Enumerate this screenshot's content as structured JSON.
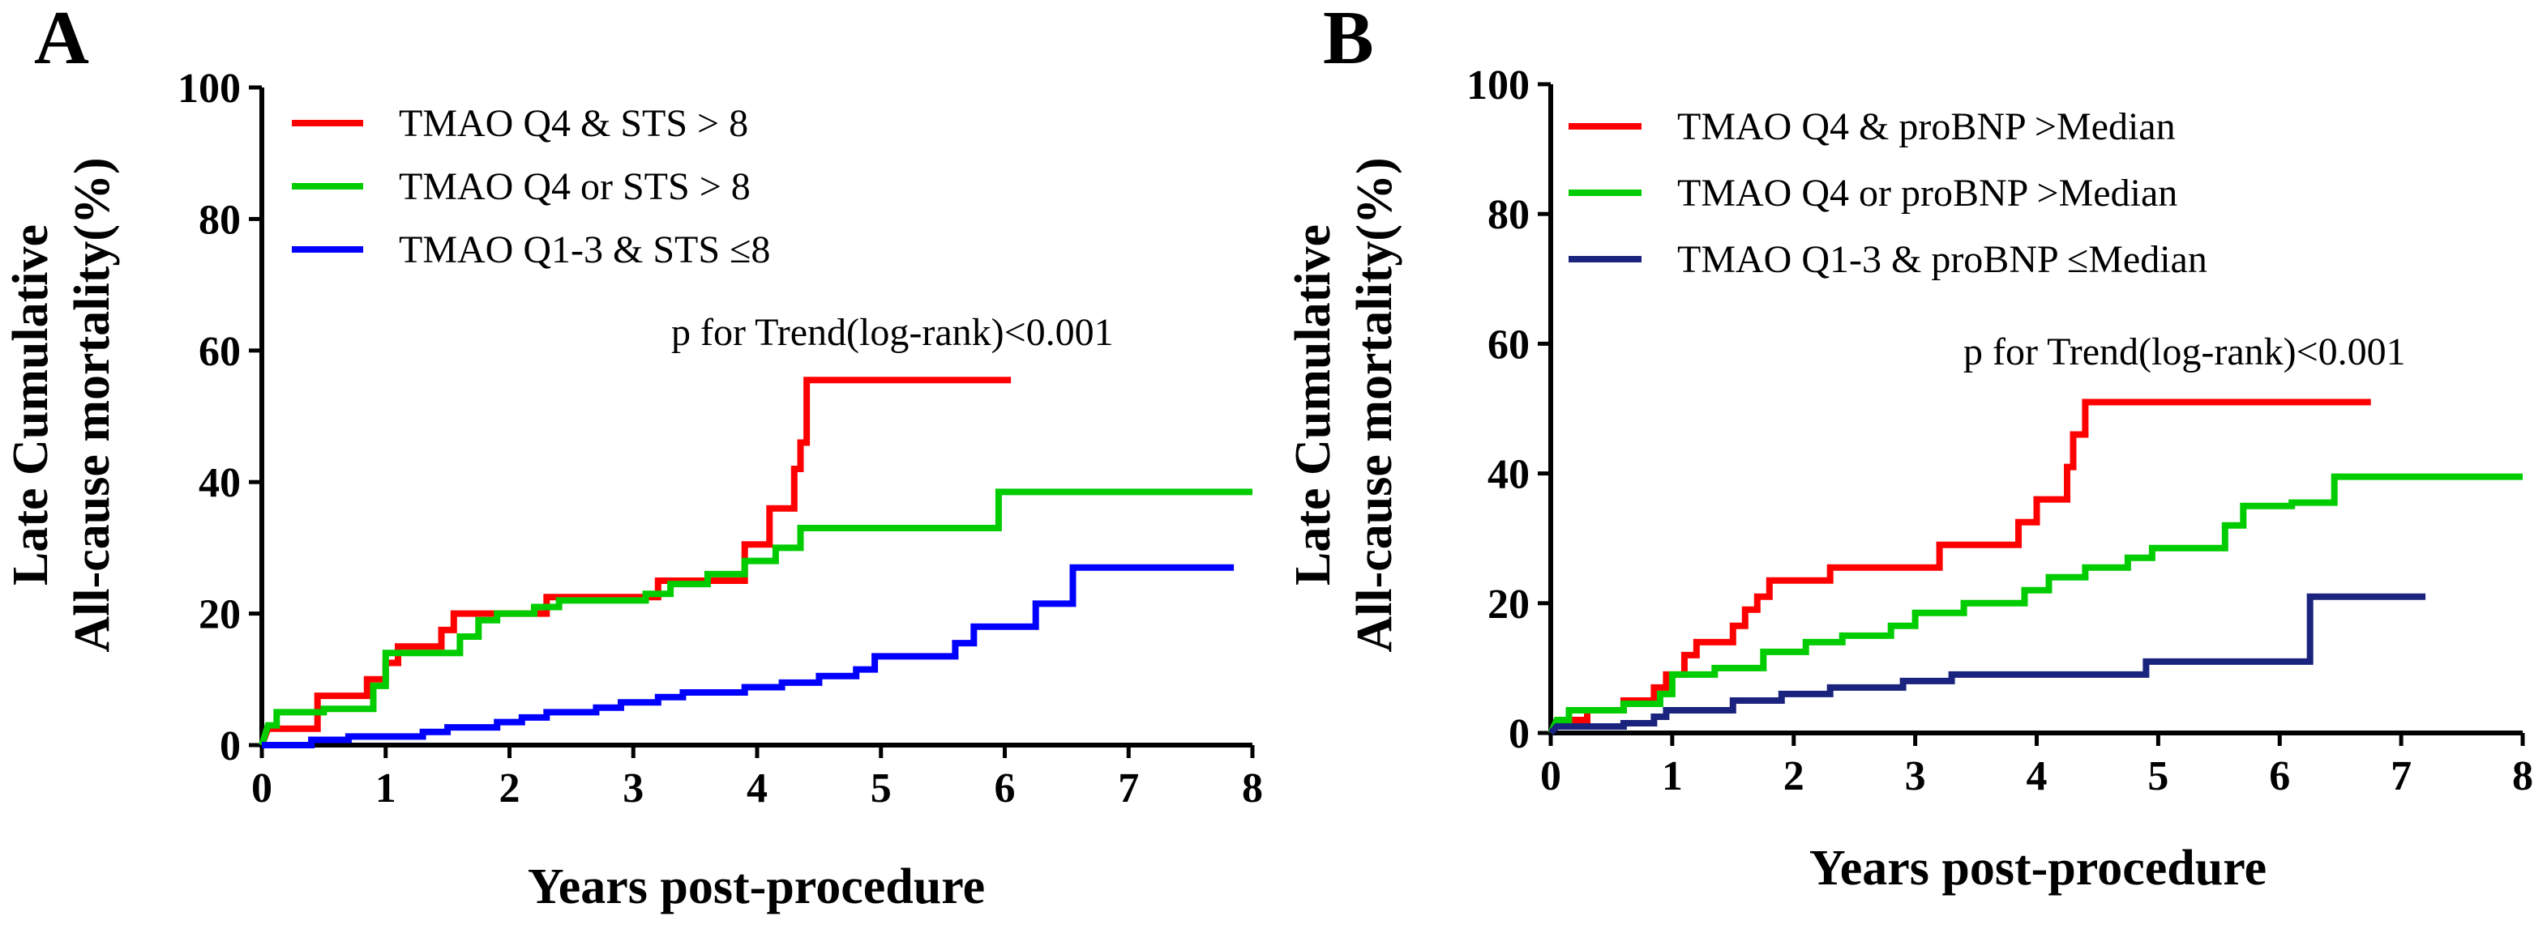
{
  "chart_data": [
    {
      "panel": "A",
      "type": "line",
      "xlabel": "Years post-procedure",
      "ylabel": [
        "Late Cumulative",
        "All-cause mortality(%)"
      ],
      "xlim": [
        0,
        8
      ],
      "ylim": [
        0,
        100
      ],
      "xticks": [
        "0",
        "1",
        "2",
        "3",
        "4",
        "5",
        "6",
        "7",
        "8"
      ],
      "yticks": [
        "0",
        "20",
        "40",
        "60",
        "80",
        "100"
      ],
      "legend_position": "top-left",
      "annotation": "p for Trend(log-rank)<0.001",
      "series": [
        {
          "name": "TMAO Q4 & STS > 8",
          "color": "#ff0000",
          "points": [
            [
              0,
              0
            ],
            [
              0.05,
              2.5
            ],
            [
              0.45,
              2.5
            ],
            [
              0.45,
              7.5
            ],
            [
              0.85,
              7.5
            ],
            [
              0.85,
              10
            ],
            [
              1.0,
              10
            ],
            [
              1.0,
              12.5
            ],
            [
              1.1,
              12.5
            ],
            [
              1.1,
              15
            ],
            [
              1.45,
              15
            ],
            [
              1.45,
              17.5
            ],
            [
              1.55,
              17.5
            ],
            [
              1.55,
              20
            ],
            [
              2.3,
              20
            ],
            [
              2.3,
              22.5
            ],
            [
              3.2,
              22.5
            ],
            [
              3.2,
              25
            ],
            [
              3.9,
              25
            ],
            [
              3.9,
              30.5
            ],
            [
              4.1,
              30.5
            ],
            [
              4.1,
              36
            ],
            [
              4.3,
              36
            ],
            [
              4.3,
              42
            ],
            [
              4.35,
              42
            ],
            [
              4.35,
              46
            ],
            [
              4.4,
              46
            ],
            [
              4.4,
              55.5
            ],
            [
              6.05,
              55.5
            ]
          ]
        },
        {
          "name": "TMAO Q4 or STS > 8",
          "color": "#00cc00",
          "points": [
            [
              0,
              0
            ],
            [
              0.05,
              3
            ],
            [
              0.12,
              3
            ],
            [
              0.12,
              5
            ],
            [
              0.5,
              5
            ],
            [
              0.5,
              5.5
            ],
            [
              0.9,
              5.5
            ],
            [
              0.9,
              9
            ],
            [
              1.0,
              9
            ],
            [
              1.0,
              14
            ],
            [
              1.6,
              14
            ],
            [
              1.6,
              16.5
            ],
            [
              1.75,
              16.5
            ],
            [
              1.75,
              19
            ],
            [
              1.9,
              19
            ],
            [
              1.9,
              20
            ],
            [
              2.2,
              20
            ],
            [
              2.2,
              21
            ],
            [
              2.4,
              21
            ],
            [
              2.4,
              22
            ],
            [
              3.1,
              22
            ],
            [
              3.1,
              23
            ],
            [
              3.3,
              23
            ],
            [
              3.3,
              24.5
            ],
            [
              3.6,
              24.5
            ],
            [
              3.6,
              26
            ],
            [
              3.9,
              26
            ],
            [
              3.9,
              28
            ],
            [
              4.15,
              28
            ],
            [
              4.15,
              30
            ],
            [
              4.35,
              30
            ],
            [
              4.35,
              33
            ],
            [
              5.95,
              33
            ],
            [
              5.95,
              38.5
            ],
            [
              8,
              38.5
            ]
          ]
        },
        {
          "name": "TMAO Q1-3 & STS ≤8",
          "color": "#0000ff",
          "points": [
            [
              0,
              0
            ],
            [
              0.4,
              0
            ],
            [
              0.4,
              0.8
            ],
            [
              0.7,
              0.8
            ],
            [
              0.7,
              1.3
            ],
            [
              1.3,
              1.3
            ],
            [
              1.3,
              2
            ],
            [
              1.5,
              2
            ],
            [
              1.5,
              2.7
            ],
            [
              1.9,
              2.7
            ],
            [
              1.9,
              3.5
            ],
            [
              2.1,
              3.5
            ],
            [
              2.1,
              4.2
            ],
            [
              2.3,
              4.2
            ],
            [
              2.3,
              5
            ],
            [
              2.7,
              5
            ],
            [
              2.7,
              5.7
            ],
            [
              2.9,
              5.7
            ],
            [
              2.9,
              6.5
            ],
            [
              3.2,
              6.5
            ],
            [
              3.2,
              7.3
            ],
            [
              3.4,
              7.3
            ],
            [
              3.4,
              8
            ],
            [
              3.9,
              8
            ],
            [
              3.9,
              8.8
            ],
            [
              4.2,
              8.8
            ],
            [
              4.2,
              9.5
            ],
            [
              4.5,
              9.5
            ],
            [
              4.5,
              10.5
            ],
            [
              4.8,
              10.5
            ],
            [
              4.8,
              11.5
            ],
            [
              4.95,
              11.5
            ],
            [
              4.95,
              13.5
            ],
            [
              5.6,
              13.5
            ],
            [
              5.6,
              15.5
            ],
            [
              5.75,
              15.5
            ],
            [
              5.75,
              18
            ],
            [
              6.25,
              18
            ],
            [
              6.25,
              21.5
            ],
            [
              6.55,
              21.5
            ],
            [
              6.55,
              27
            ],
            [
              7.85,
              27
            ]
          ]
        }
      ]
    },
    {
      "panel": "B",
      "type": "line",
      "xlabel": "Years post-procedure",
      "ylabel": [
        "Late Cumulative",
        "All-cause mortality(%)"
      ],
      "xlim": [
        0,
        8
      ],
      "ylim": [
        0,
        100
      ],
      "xticks": [
        "0",
        "1",
        "2",
        "3",
        "4",
        "5",
        "6",
        "7",
        "8"
      ],
      "yticks": [
        "0",
        "20",
        "40",
        "60",
        "80",
        "100"
      ],
      "legend_position": "top-left",
      "annotation": "p for Trend(log-rank)<0.001",
      "series": [
        {
          "name": "TMAO Q4 & proBNP >Median",
          "color": "#ff0000",
          "points": [
            [
              0,
              0
            ],
            [
              0.05,
              2
            ],
            [
              0.3,
              2
            ],
            [
              0.3,
              3.5
            ],
            [
              0.6,
              3.5
            ],
            [
              0.6,
              5
            ],
            [
              0.85,
              5
            ],
            [
              0.85,
              7
            ],
            [
              0.95,
              7
            ],
            [
              0.95,
              9
            ],
            [
              1.1,
              9
            ],
            [
              1.1,
              12
            ],
            [
              1.2,
              12
            ],
            [
              1.2,
              14
            ],
            [
              1.5,
              14
            ],
            [
              1.5,
              16.5
            ],
            [
              1.6,
              16.5
            ],
            [
              1.6,
              19
            ],
            [
              1.7,
              19
            ],
            [
              1.7,
              21
            ],
            [
              1.8,
              21
            ],
            [
              1.8,
              23.5
            ],
            [
              2.3,
              23.5
            ],
            [
              2.3,
              25.5
            ],
            [
              3.2,
              25.5
            ],
            [
              3.2,
              29
            ],
            [
              3.85,
              29
            ],
            [
              3.85,
              32.5
            ],
            [
              4.0,
              32.5
            ],
            [
              4.0,
              36
            ],
            [
              4.25,
              36
            ],
            [
              4.25,
              41
            ],
            [
              4.3,
              41
            ],
            [
              4.3,
              46
            ],
            [
              4.4,
              46
            ],
            [
              4.4,
              51
            ],
            [
              6.75,
              51
            ]
          ]
        },
        {
          "name": "TMAO Q4 or proBNP >Median",
          "color": "#00cc00",
          "points": [
            [
              0,
              0
            ],
            [
              0.05,
              2
            ],
            [
              0.15,
              2
            ],
            [
              0.15,
              3.5
            ],
            [
              0.6,
              3.5
            ],
            [
              0.6,
              4.5
            ],
            [
              0.9,
              4.5
            ],
            [
              0.9,
              6
            ],
            [
              1.0,
              6
            ],
            [
              1.0,
              9
            ],
            [
              1.35,
              9
            ],
            [
              1.35,
              10
            ],
            [
              1.75,
              10
            ],
            [
              1.75,
              12.5
            ],
            [
              2.1,
              12.5
            ],
            [
              2.1,
              14
            ],
            [
              2.4,
              14
            ],
            [
              2.4,
              15
            ],
            [
              2.8,
              15
            ],
            [
              2.8,
              16.5
            ],
            [
              3.0,
              16.5
            ],
            [
              3.0,
              18.5
            ],
            [
              3.4,
              18.5
            ],
            [
              3.4,
              20
            ],
            [
              3.9,
              20
            ],
            [
              3.9,
              22
            ],
            [
              4.1,
              22
            ],
            [
              4.1,
              24
            ],
            [
              4.4,
              24
            ],
            [
              4.4,
              25.5
            ],
            [
              4.75,
              25.5
            ],
            [
              4.75,
              27
            ],
            [
              4.95,
              27
            ],
            [
              4.95,
              28.5
            ],
            [
              5.55,
              28.5
            ],
            [
              5.55,
              32
            ],
            [
              5.7,
              32
            ],
            [
              5.7,
              35
            ],
            [
              6.1,
              35
            ],
            [
              6.1,
              35.5
            ],
            [
              6.45,
              35.5
            ],
            [
              6.45,
              39.5
            ],
            [
              8,
              39.5
            ]
          ]
        },
        {
          "name": "TMAO Q1-3 & proBNP ≤Median",
          "color": "#1a237e",
          "points": [
            [
              0,
              0
            ],
            [
              0.05,
              1
            ],
            [
              0.6,
              1
            ],
            [
              0.6,
              1.5
            ],
            [
              0.85,
              1.5
            ],
            [
              0.85,
              2.5
            ],
            [
              0.95,
              2.5
            ],
            [
              0.95,
              3.5
            ],
            [
              1.5,
              3.5
            ],
            [
              1.5,
              5
            ],
            [
              1.9,
              5
            ],
            [
              1.9,
              6
            ],
            [
              2.3,
              6
            ],
            [
              2.3,
              7
            ],
            [
              2.9,
              7
            ],
            [
              2.9,
              8
            ],
            [
              3.3,
              8
            ],
            [
              3.3,
              9
            ],
            [
              4.9,
              9
            ],
            [
              4.9,
              11
            ],
            [
              6.25,
              11
            ],
            [
              6.25,
              21
            ],
            [
              7.2,
              21
            ]
          ]
        }
      ]
    }
  ]
}
